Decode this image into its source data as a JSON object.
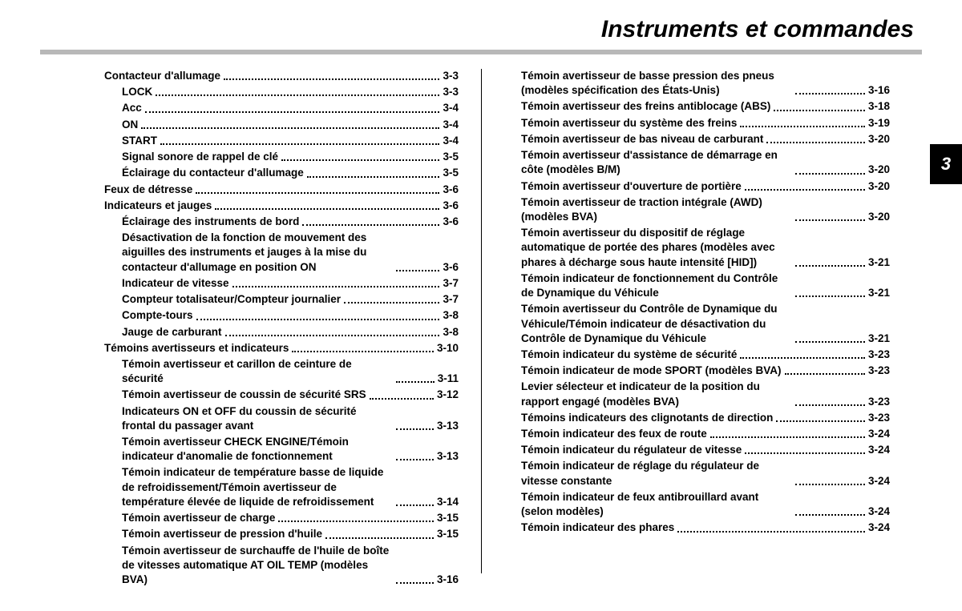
{
  "title": "Instruments et commandes",
  "chapter_tab": "3",
  "left": [
    {
      "lvl": 0,
      "t": "Contacteur d'allumage",
      "p": "3-3"
    },
    {
      "lvl": 1,
      "t": "LOCK",
      "p": "3-3"
    },
    {
      "lvl": 1,
      "t": "Acc",
      "p": "3-4"
    },
    {
      "lvl": 1,
      "t": "ON",
      "p": "3-4"
    },
    {
      "lvl": 1,
      "t": "START",
      "p": "3-4"
    },
    {
      "lvl": 1,
      "t": "Signal sonore de rappel de clé",
      "p": "3-5"
    },
    {
      "lvl": 1,
      "t": "Éclairage du contacteur d'allumage",
      "p": "3-5"
    },
    {
      "lvl": 0,
      "t": "Feux de détresse",
      "p": "3-6"
    },
    {
      "lvl": 0,
      "t": "Indicateurs et jauges",
      "p": "3-6"
    },
    {
      "lvl": 1,
      "t": "Éclairage des instruments de bord",
      "p": "3-6"
    },
    {
      "lvl": 1,
      "t": "Désactivation de la fonction de mouvement des aiguilles des instruments et jauges à la mise du contacteur d'allumage en position ON",
      "p": "3-6"
    },
    {
      "lvl": 1,
      "t": "Indicateur de vitesse",
      "p": "3-7"
    },
    {
      "lvl": 1,
      "t": "Compteur totalisateur/Compteur journalier",
      "p": "3-7"
    },
    {
      "lvl": 1,
      "t": "Compte-tours",
      "p": "3-8"
    },
    {
      "lvl": 1,
      "t": "Jauge de carburant",
      "p": "3-8"
    },
    {
      "lvl": 0,
      "t": "Témoins avertisseurs et indicateurs",
      "p": "3-10"
    },
    {
      "lvl": 1,
      "t": "Témoin avertisseur et carillon de ceinture de sécurité",
      "p": "3-11"
    },
    {
      "lvl": 1,
      "t": "Témoin avertisseur de coussin de sécurité SRS",
      "p": "3-12"
    },
    {
      "lvl": 1,
      "t": "Indicateurs ON et OFF du coussin de sécurité frontal du passager avant",
      "p": "3-13"
    },
    {
      "lvl": 1,
      "t": "Témoin avertisseur CHECK ENGINE/Témoin indicateur d'anomalie de fonctionnement",
      "p": "3-13"
    },
    {
      "lvl": 1,
      "t": "Témoin indicateur de température basse de liquide de refroidissement/Témoin avertisseur de température élevée de liquide de refroidissement",
      "p": "3-14"
    },
    {
      "lvl": 1,
      "t": "Témoin avertisseur de charge",
      "p": "3-15"
    },
    {
      "lvl": 1,
      "t": "Témoin avertisseur de pression d'huile",
      "p": "3-15"
    },
    {
      "lvl": 1,
      "t": "Témoin avertisseur de surchauffe de l'huile de boîte de vitesses automatique AT OIL TEMP (modèles BVA)",
      "p": "3-16"
    }
  ],
  "right": [
    {
      "lvl": 1,
      "t": "Témoin avertisseur de basse pression des pneus (modèles spécification des États-Unis)",
      "p": "3-16"
    },
    {
      "lvl": 1,
      "t": "Témoin avertisseur des freins antiblocage (ABS)",
      "p": "3-18"
    },
    {
      "lvl": 1,
      "t": "Témoin avertisseur du système des freins",
      "p": "3-19"
    },
    {
      "lvl": 1,
      "t": "Témoin avertisseur de bas niveau de carburant",
      "p": "3-20"
    },
    {
      "lvl": 1,
      "t": "Témoin avertisseur d'assistance de démarrage en côte (modèles B/M)",
      "p": "3-20"
    },
    {
      "lvl": 1,
      "t": "Témoin avertisseur d'ouverture de portière",
      "p": "3-20"
    },
    {
      "lvl": 1,
      "t": "Témoin avertisseur de traction intégrale (AWD) (modèles BVA)",
      "p": "3-20"
    },
    {
      "lvl": 1,
      "t": "Témoin avertisseur du dispositif de réglage automatique de portée des phares (modèles avec phares à décharge sous haute intensité [HID])",
      "p": "3-21"
    },
    {
      "lvl": 1,
      "t": "Témoin indicateur de fonctionnement du Contrôle de Dynamique du Véhicule",
      "p": "3-21"
    },
    {
      "lvl": 1,
      "t": "Témoin avertisseur du Contrôle de Dynamique du Véhicule/Témoin indicateur de désactivation du Contrôle de Dynamique du Véhicule",
      "p": "3-21"
    },
    {
      "lvl": 1,
      "t": "Témoin indicateur du système de sécurité",
      "p": "3-23"
    },
    {
      "lvl": 1,
      "t": "Témoin indicateur de mode SPORT (modèles BVA)",
      "p": "3-23"
    },
    {
      "lvl": 1,
      "t": "Levier sélecteur et indicateur de la position du rapport engagé (modèles BVA)",
      "p": "3-23"
    },
    {
      "lvl": 1,
      "t": "Témoins indicateurs des clignotants de direction",
      "p": "3-23"
    },
    {
      "lvl": 1,
      "t": "Témoin indicateur des feux de route",
      "p": "3-24"
    },
    {
      "lvl": 1,
      "t": "Témoin indicateur du régulateur de vitesse",
      "p": "3-24"
    },
    {
      "lvl": 1,
      "t": "Témoin indicateur de réglage du régulateur de vitesse constante",
      "p": "3-24"
    },
    {
      "lvl": 1,
      "t": "Témoin indicateur de feux antibrouillard avant (selon modèles)",
      "p": "3-24"
    },
    {
      "lvl": 1,
      "t": "Témoin indicateur des phares",
      "p": "3-24"
    }
  ]
}
